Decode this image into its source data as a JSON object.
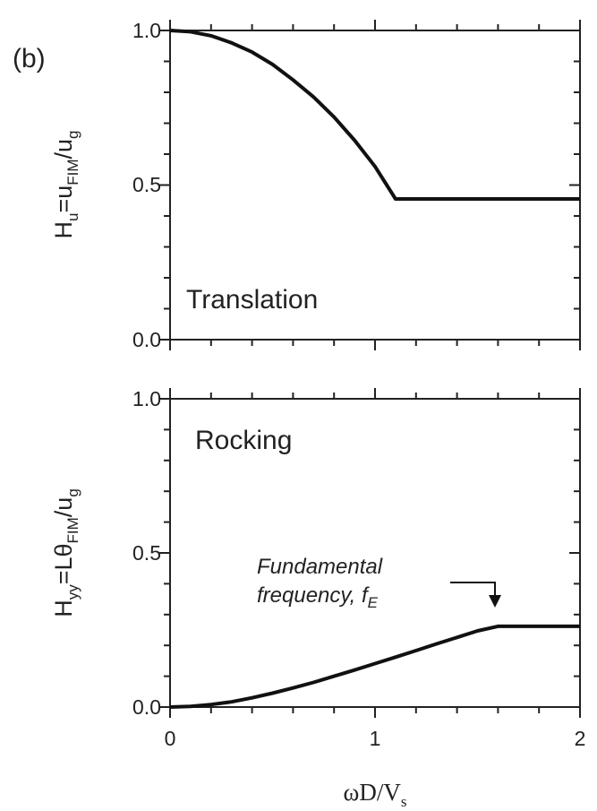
{
  "figure_tag": "(b)",
  "colors": {
    "line": "#111111",
    "axis": "#222222"
  },
  "x_axis": {
    "label_parts": {
      "main": "ωD/V",
      "sub": "s"
    },
    "ticks": [
      "0",
      "1",
      "2"
    ]
  },
  "chart_data": [
    {
      "type": "line",
      "panel_label": "Translation",
      "ylabel_parts": {
        "a": "H",
        "a_sub": "u",
        "b": "=u",
        "b_sub": "FIM",
        "c": "/u",
        "c_sub": "g"
      },
      "xlim": [
        0,
        2
      ],
      "ylim": [
        0,
        1
      ],
      "yticks": [
        "0.0",
        "0.5",
        "1.0"
      ],
      "grid": false,
      "series": [
        {
          "x": [
            0,
            0.1,
            0.2,
            0.3,
            0.4,
            0.5,
            0.6,
            0.7,
            0.8,
            0.9,
            1.0,
            1.1,
            1.2,
            1.4,
            1.6,
            1.8,
            2.0
          ],
          "y": [
            1.0,
            0.996,
            0.983,
            0.96,
            0.93,
            0.89,
            0.84,
            0.785,
            0.72,
            0.645,
            0.56,
            0.455,
            0.455,
            0.455,
            0.455,
            0.455,
            0.455
          ]
        }
      ]
    },
    {
      "type": "line",
      "panel_label": "Rocking",
      "ylabel_parts": {
        "a": "H",
        "a_sub": "yy",
        "b": "=Lθ",
        "b_sub": "FIM",
        "c": "/u",
        "c_sub": "g"
      },
      "xlim": [
        0,
        2
      ],
      "ylim": [
        0,
        1
      ],
      "yticks": [
        "0.0",
        "0.5",
        "1.0"
      ],
      "grid": false,
      "annotation": {
        "line1": "Fundamental",
        "line2": "frequency, f",
        "line2_sub": "E"
      },
      "series": [
        {
          "x": [
            0,
            0.1,
            0.2,
            0.3,
            0.4,
            0.5,
            0.6,
            0.7,
            0.8,
            0.9,
            1.0,
            1.1,
            1.2,
            1.3,
            1.4,
            1.5,
            1.6,
            1.7,
            1.8,
            2.0
          ],
          "y": [
            0,
            0.002,
            0.008,
            0.017,
            0.03,
            0.045,
            0.062,
            0.08,
            0.1,
            0.12,
            0.141,
            0.162,
            0.183,
            0.205,
            0.226,
            0.247,
            0.262,
            0.262,
            0.262,
            0.262
          ]
        }
      ]
    }
  ]
}
